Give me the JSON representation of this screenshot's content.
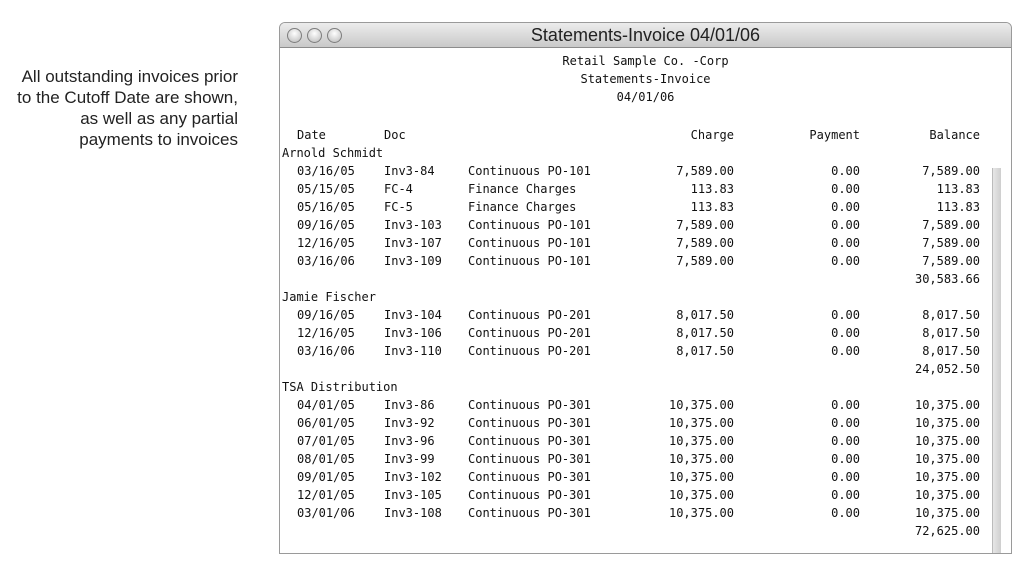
{
  "caption": "All outstanding invoices prior to the Cutoff Date are shown, as well as any partial payments to invoices",
  "window": {
    "title": "Statements-Invoice 04/01/06"
  },
  "report": {
    "company": "Retail Sample Co. -Corp",
    "name": "Statements-Invoice",
    "date": "04/01/06"
  },
  "columns": {
    "date": "Date",
    "doc": "Doc",
    "charge": "Charge",
    "payment": "Payment",
    "balance": "Balance"
  },
  "groups": [
    {
      "customer": "Arnold Schmidt",
      "total": "30,583.66",
      "rows": [
        [
          "03/16/05",
          "Inv3-84",
          "Continuous PO-101",
          "7,589.00",
          "0.00",
          "7,589.00"
        ],
        [
          "05/15/05",
          "FC-4",
          "Finance Charges",
          "113.83",
          "0.00",
          "113.83"
        ],
        [
          "05/16/05",
          "FC-5",
          "Finance Charges",
          "113.83",
          "0.00",
          "113.83"
        ],
        [
          "09/16/05",
          "Inv3-103",
          "Continuous PO-101",
          "7,589.00",
          "0.00",
          "7,589.00"
        ],
        [
          "12/16/05",
          "Inv3-107",
          "Continuous PO-101",
          "7,589.00",
          "0.00",
          "7,589.00"
        ],
        [
          "03/16/06",
          "Inv3-109",
          "Continuous PO-101",
          "7,589.00",
          "0.00",
          "7,589.00"
        ]
      ]
    },
    {
      "customer": "Jamie Fischer",
      "total": "24,052.50",
      "rows": [
        [
          "09/16/05",
          "Inv3-104",
          "Continuous PO-201",
          "8,017.50",
          "0.00",
          "8,017.50"
        ],
        [
          "12/16/05",
          "Inv3-106",
          "Continuous PO-201",
          "8,017.50",
          "0.00",
          "8,017.50"
        ],
        [
          "03/16/06",
          "Inv3-110",
          "Continuous PO-201",
          "8,017.50",
          "0.00",
          "8,017.50"
        ]
      ]
    },
    {
      "customer": "TSA Distribution",
      "total": "72,625.00",
      "rows": [
        [
          "04/01/05",
          "Inv3-86",
          "Continuous PO-301",
          "10,375.00",
          "0.00",
          "10,375.00"
        ],
        [
          "06/01/05",
          "Inv3-92",
          "Continuous PO-301",
          "10,375.00",
          "0.00",
          "10,375.00"
        ],
        [
          "07/01/05",
          "Inv3-96",
          "Continuous PO-301",
          "10,375.00",
          "0.00",
          "10,375.00"
        ],
        [
          "08/01/05",
          "Inv3-99",
          "Continuous PO-301",
          "10,375.00",
          "0.00",
          "10,375.00"
        ],
        [
          "09/01/05",
          "Inv3-102",
          "Continuous PO-301",
          "10,375.00",
          "0.00",
          "10,375.00"
        ],
        [
          "12/01/05",
          "Inv3-105",
          "Continuous PO-301",
          "10,375.00",
          "0.00",
          "10,375.00"
        ],
        [
          "03/01/06",
          "Inv3-108",
          "Continuous PO-301",
          "10,375.00",
          "0.00",
          "10,375.00"
        ]
      ]
    }
  ]
}
